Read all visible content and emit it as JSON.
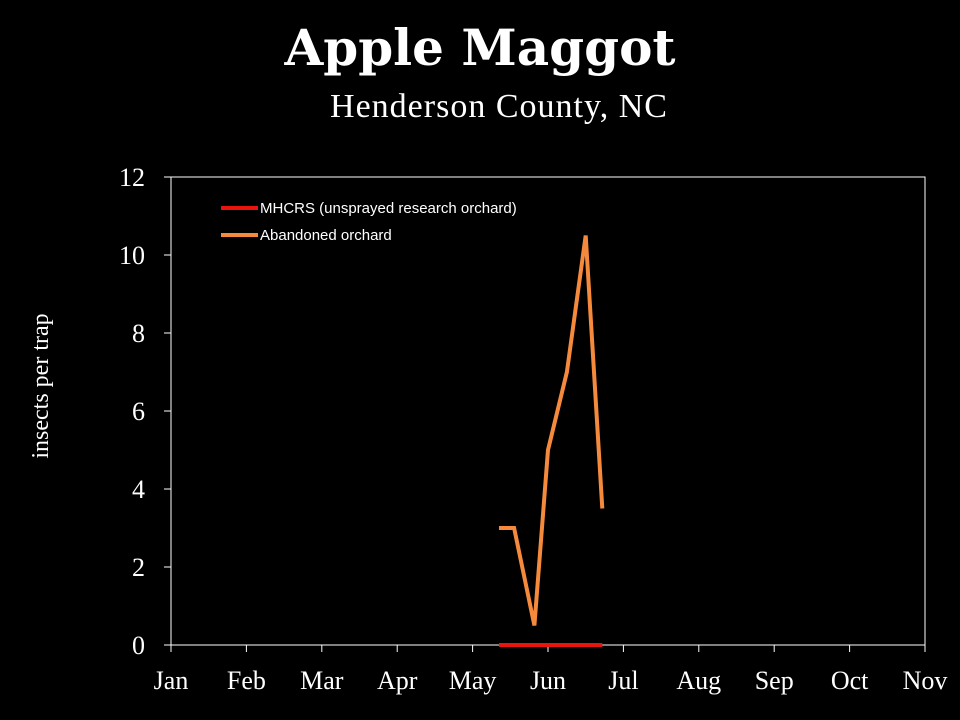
{
  "chart_data": {
    "type": "line",
    "title": "Apple Maggot",
    "subtitle": "Henderson County, NC",
    "ylabel": "insects per trap",
    "xlabel": "",
    "categories": [
      "Jan",
      "Feb",
      "Mar",
      "Apr",
      "May",
      "Jun",
      "Jul",
      "Aug",
      "Sep",
      "Oct",
      "Nov"
    ],
    "x_is_month_position": true,
    "ylim": [
      0,
      12
    ],
    "yticks": [
      0,
      2,
      4,
      6,
      8,
      10,
      12
    ],
    "grid": false,
    "legend_position": "top-left",
    "series": [
      {
        "name": "MHCRS (unsprayed research orchard)",
        "color": "#e8150f",
        "x": [
          5.35,
          5.6,
          5.8,
          6.05,
          6.3,
          6.55,
          6.72
        ],
        "values": [
          0,
          0,
          0,
          0,
          0,
          0,
          0
        ]
      },
      {
        "name": "Abandoned orchard",
        "color": "#f58a3c",
        "x": [
          5.35,
          5.55,
          5.82,
          6.0,
          6.25,
          6.5,
          6.72
        ],
        "values": [
          3,
          3,
          0.5,
          5,
          7,
          10.5,
          3.5
        ]
      }
    ]
  }
}
